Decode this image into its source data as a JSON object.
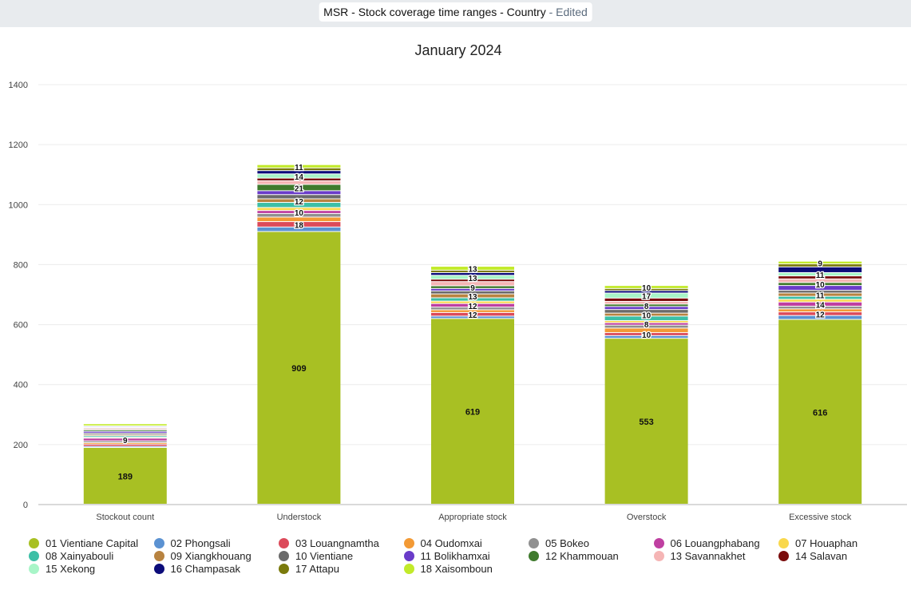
{
  "header": {
    "title": "MSR - Stock coverage time ranges - Country",
    "edited": "- Edited"
  },
  "chart_data": {
    "type": "bar",
    "stacked": true,
    "title": "January 2024",
    "xlabel": "",
    "ylabel": "",
    "ylim": [
      0,
      1400
    ],
    "yticks": [
      0,
      200,
      400,
      600,
      800,
      1000,
      1200,
      1400
    ],
    "grid": true,
    "legend_position": "bottom",
    "categories": [
      "Stockout count",
      "Understock",
      "Appropriate stock",
      "Overstock",
      "Excessive stock"
    ],
    "series": [
      {
        "name": "01 Vientiane Capital",
        "color": "#a8c023",
        "values": [
          189,
          909,
          619,
          553,
          616
        ]
      },
      {
        "name": "02 Phongsali",
        "color": "#5b92d2",
        "values": [
          4,
          15,
          8,
          9,
          13
        ]
      },
      {
        "name": "03 Louangnamtha",
        "color": "#dc4a5a",
        "values": [
          7,
          18,
          12,
          10,
          12
        ]
      },
      {
        "name": "04 Oudomxai",
        "color": "#f39a35",
        "values": [
          5,
          15,
          9,
          15,
          10
        ]
      },
      {
        "name": "05 Bokeo",
        "color": "#909090",
        "values": [
          6,
          12,
          9,
          10,
          9
        ]
      },
      {
        "name": "06 Louangphabang",
        "color": "#bf3fa1",
        "values": [
          9,
          10,
          12,
          8,
          14
        ]
      },
      {
        "name": "07 Houaphan",
        "color": "#f9d84c",
        "values": [
          3,
          10,
          8,
          7,
          9
        ]
      },
      {
        "name": "08 Xainyabouli",
        "color": "#3cbfa6",
        "values": [
          5,
          17,
          11,
          15,
          10
        ]
      },
      {
        "name": "09 Xiangkhouang",
        "color": "#b88340",
        "values": [
          4,
          12,
          13,
          10,
          11
        ]
      },
      {
        "name": "10 Vientiane",
        "color": "#6a6a6a",
        "values": [
          5,
          14,
          10,
          12,
          9
        ]
      },
      {
        "name": "11 Bolikhamxai",
        "color": "#6a3cc9",
        "values": [
          6,
          13,
          8,
          10,
          16
        ]
      },
      {
        "name": "12 Khammouan",
        "color": "#3f7a2d",
        "values": [
          5,
          21,
          9,
          8,
          10
        ]
      },
      {
        "name": "13 Savannakhet",
        "color": "#f5b5b5",
        "values": [
          4,
          12,
          14,
          9,
          12
        ]
      },
      {
        "name": "14 Salavan",
        "color": "#7a0c0c",
        "values": [
          3,
          9,
          8,
          11,
          10
        ]
      },
      {
        "name": "15 Xekong",
        "color": "#a8f5c8",
        "values": [
          2,
          14,
          13,
          17,
          11
        ]
      },
      {
        "name": "16 Champasak",
        "color": "#0c0c7a",
        "values": [
          3,
          11,
          9,
          8,
          19
        ]
      },
      {
        "name": "17 Attapu",
        "color": "#7a7a0c",
        "values": [
          1,
          9,
          8,
          7,
          10
        ]
      },
      {
        "name": "18 Xaisomboun",
        "color": "#c2ea2a",
        "values": [
          7,
          11,
          13,
          10,
          9
        ]
      }
    ]
  }
}
